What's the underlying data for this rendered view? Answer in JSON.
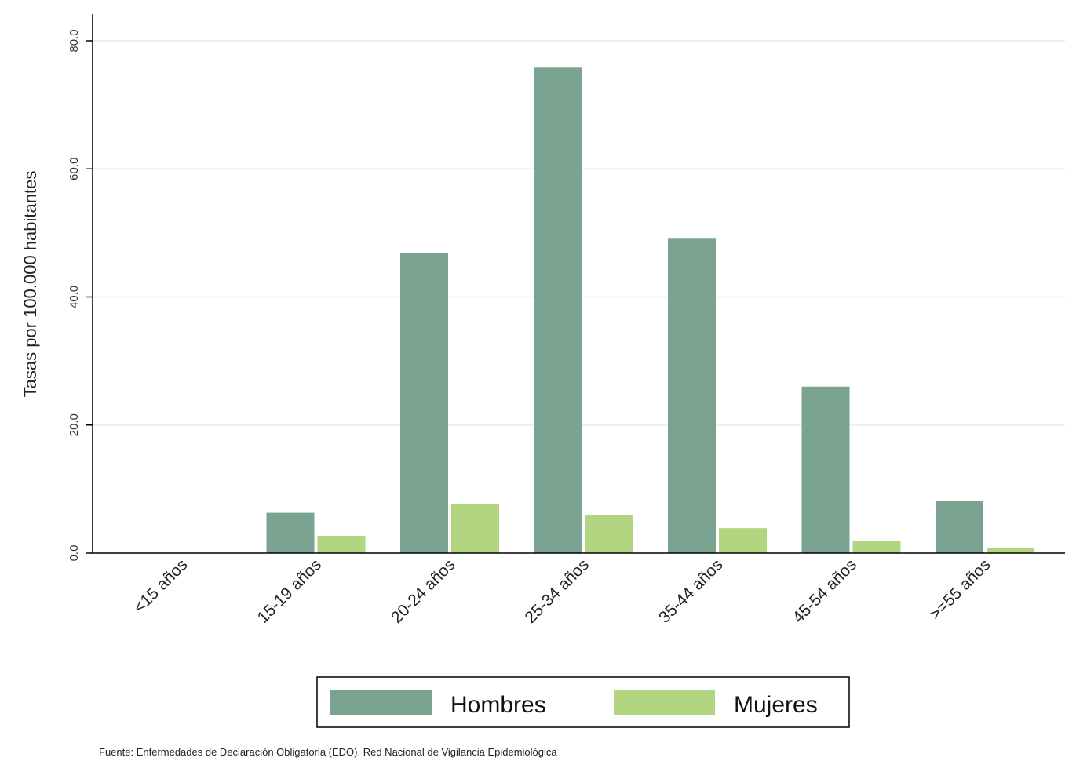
{
  "chart_data": {
    "type": "bar",
    "title": "",
    "xlabel": "",
    "ylabel": "Tasas por 100.000 habitantes",
    "ylim": [
      0,
      80
    ],
    "yticks": [
      "0.0",
      "20.0",
      "40.0",
      "60.0",
      "80.0"
    ],
    "ytick_values": [
      0,
      20,
      40,
      60,
      80
    ],
    "grid": "horizontal",
    "categories": [
      "<15 años",
      "15-19 años",
      "20-24 años",
      "25-34 años",
      "35-44 años",
      "45-54 años",
      ">=55 años"
    ],
    "series": [
      {
        "name": "Hombres",
        "color": "#7ba391",
        "values": [
          0.0,
          6.3,
          46.8,
          75.8,
          49.1,
          26.0,
          8.1
        ]
      },
      {
        "name": "Mujeres",
        "color": "#b1d67f",
        "values": [
          0.0,
          2.7,
          7.6,
          6.0,
          3.9,
          1.9,
          0.8
        ]
      }
    ],
    "legend": {
      "position": "bottom-center"
    }
  },
  "footer": {
    "source": "Fuente: Enfermedades de Declaración Obligatoria (EDO). Red Nacional de Vigilancia Epidemiológica"
  }
}
